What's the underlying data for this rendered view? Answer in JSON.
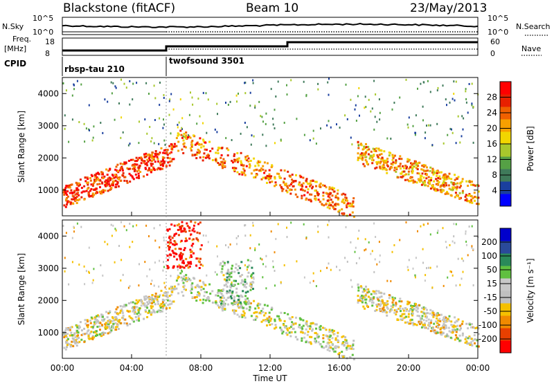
{
  "header": {
    "title": "Blackstone (fitACF)",
    "beam": "Beam 10",
    "date": "23/May/2013"
  },
  "strip": {
    "nsky_label": "N.Sky",
    "nsearch_label": "N.Search",
    "count_ticks": [
      "10^5",
      "10^0"
    ],
    "freq_label_1": "Freq.",
    "freq_label_2": "[MHz]",
    "freq_ticks": [
      "18",
      "8"
    ],
    "nave_label": "Nave",
    "nave_ticks": [
      "60",
      "0"
    ],
    "cpid_label": "CPID",
    "programs": [
      {
        "name": "rbsp-tau 210",
        "start_ut": 0
      },
      {
        "name": "twofsound 3501",
        "start_ut": 6
      }
    ]
  },
  "colors": {
    "power_scale": [
      "#0000ff",
      "#1a3f9e",
      "#3f7a5a",
      "#55a145",
      "#a8c82c",
      "#f1d600",
      "#f7a000",
      "#f06000",
      "#e82000",
      "#ff0000"
    ],
    "velocity_scale": [
      "#ff0000",
      "#e84000",
      "#f08a00",
      "#f5c000",
      "#c0c0c0",
      "#c8c8c8",
      "#60c040",
      "#2a8a5a",
      "#2a4a9a",
      "#0000cc"
    ]
  },
  "chart_data": [
    {
      "type": "heatmap",
      "title": "",
      "ylabel": "Slant Range [km]",
      "xlabel": "",
      "x_range_ut": [
        0,
        24
      ],
      "ylim": [
        200,
        4500
      ],
      "yticks": [
        1000,
        2000,
        3000,
        4000
      ],
      "colorbar": {
        "label": "Power [dB]",
        "ticks": [
          "4",
          "8",
          "12",
          "16",
          "20",
          "24",
          "28"
        ],
        "range": [
          0,
          30
        ]
      },
      "features": [
        {
          "name": "near-range band",
          "ut_start": 0.0,
          "ut_end": 6.5,
          "range_start_km": 800,
          "range_end_km": 2200,
          "power_db": 28
        },
        {
          "name": "main band",
          "ut_start": 6.5,
          "ut_end": 16.8,
          "range_start_km": 2600,
          "range_end_km": 500,
          "power_db": 24
        },
        {
          "name": "late band",
          "ut_start": 17.0,
          "ut_end": 24.0,
          "range_start_km": 2200,
          "range_end_km": 900,
          "power_db": 22
        }
      ]
    },
    {
      "type": "heatmap",
      "title": "",
      "ylabel": "Slant Range [km]",
      "xlabel": "Time UT",
      "x_range_ut": [
        0,
        24
      ],
      "xticks": [
        "00:00",
        "04:00",
        "08:00",
        "12:00",
        "16:00",
        "20:00",
        "00:00"
      ],
      "ylim": [
        200,
        4500
      ],
      "yticks": [
        1000,
        2000,
        3000,
        4000
      ],
      "colorbar": {
        "label": "Velocity [m s⁻¹]",
        "ticks": [
          "-200",
          "-100",
          "-50",
          "-15",
          "15",
          "50",
          "100",
          "200"
        ],
        "range": [
          -250,
          250
        ]
      },
      "features": [
        {
          "name": "ground scatter band",
          "ut_start": 0.0,
          "ut_end": 24.0,
          "velocity_ms": 0
        },
        {
          "name": "positive velocity patch",
          "ut_start": 9.0,
          "ut_end": 11.0,
          "velocity_ms": 60
        },
        {
          "name": "negative velocity patch",
          "ut_start": 6.0,
          "ut_end": 8.0,
          "velocity_ms": -200
        }
      ]
    }
  ]
}
